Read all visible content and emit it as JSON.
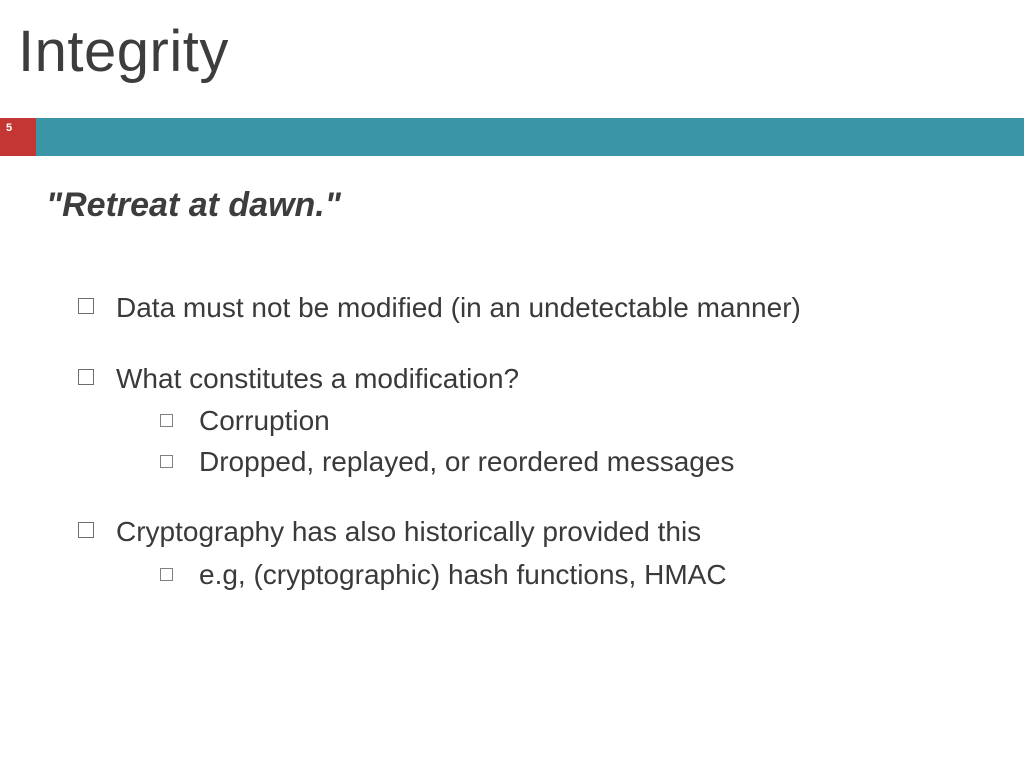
{
  "title": "Integrity",
  "page_number": "5",
  "quote": "\"Retreat at dawn.\"",
  "bullets": [
    {
      "text": "Data must not be modified (in an undetectable manner)",
      "children": []
    },
    {
      "text": "What constitutes a modification?",
      "children": [
        "Corruption",
        "Dropped, replayed, or reordered messages"
      ]
    },
    {
      "text": "Cryptography has also historically provided this",
      "children": [
        "e.g, (cryptographic) hash functions, HMAC"
      ]
    }
  ],
  "colors": {
    "accent_red": "#c43634",
    "accent_teal": "#3a95a6",
    "background": "#ffffff",
    "text": "#3a3a3a"
  },
  "fonts": {
    "title_size": 58,
    "quote_size": 34,
    "body_size": 28
  }
}
